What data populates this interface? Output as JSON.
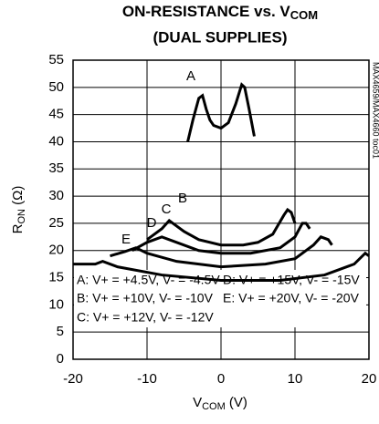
{
  "chart_data": {
    "type": "line",
    "title": {
      "main": "ON-RESISTANCE vs. V",
      "sub": "COM"
    },
    "subtitle": "(DUAL SUPPLIES)",
    "x_label": {
      "main": "V",
      "sub": "COM",
      "unit": " (V)"
    },
    "y_label": {
      "main": "R",
      "sub": "ON",
      "unit": " (Ω)"
    },
    "side_note": "MAX4659/MAX4660 toc01",
    "xlim": [
      -20,
      20
    ],
    "xticks": [
      -20,
      -10,
      0,
      10,
      20
    ],
    "ylim": [
      0,
      55
    ],
    "yticks": [
      0,
      5,
      10,
      15,
      20,
      25,
      30,
      35,
      40,
      45,
      50,
      55
    ],
    "grid": true,
    "series": [
      {
        "name": "A",
        "color": "#000000",
        "x": [
          -4.5,
          -3.8,
          -3,
          -2.5,
          -2,
          -1.5,
          -1,
          0,
          1,
          2,
          2.8,
          3.2,
          3.8,
          4.5
        ],
        "values": [
          40,
          44,
          48,
          48.5,
          46,
          44,
          43,
          42.5,
          43.5,
          47,
          50.5,
          50,
          46,
          41
        ]
      },
      {
        "name": "B",
        "color": "#000000",
        "x": [
          -10,
          -8,
          -7,
          -6.5,
          -5,
          -3,
          0,
          3,
          5,
          7,
          8.5,
          9,
          9.5,
          10
        ],
        "values": [
          22,
          24,
          25.5,
          25,
          23.5,
          22,
          21,
          21,
          21.5,
          23,
          26.5,
          27.5,
          27,
          25
        ]
      },
      {
        "name": "C",
        "color": "#000000",
        "x": [
          -12,
          -10,
          -8,
          -6,
          -3,
          0,
          4,
          8,
          10,
          11,
          11.5,
          12
        ],
        "values": [
          20,
          21.5,
          22.5,
          21.5,
          20,
          19.5,
          19.5,
          20.5,
          22.5,
          25,
          25,
          24
        ]
      },
      {
        "name": "D",
        "color": "#000000",
        "x": [
          -15,
          -13,
          -11.5,
          -10,
          -6,
          0,
          6,
          10,
          12.5,
          13.5,
          14.5,
          15
        ],
        "values": [
          19,
          19.8,
          20.5,
          19.5,
          18,
          17,
          17.5,
          18.5,
          21,
          22.5,
          22,
          21
        ]
      },
      {
        "name": "E",
        "color": "#000000",
        "x": [
          -20,
          -17,
          -16,
          -14,
          -8,
          0,
          8,
          14,
          18,
          19.5,
          20
        ],
        "values": [
          17.5,
          17.5,
          18,
          17,
          15.5,
          14.5,
          14.5,
          15.5,
          17.5,
          19.5,
          19
        ]
      }
    ],
    "legend_entries": [
      "A: V+ = +4.5V, V- = -4.5V",
      "B: V+ = +10V, V- = -10V",
      "C: V+ = +12V, V- = -12V",
      "D: V+ = +15V, V- = -15V",
      "E: V+ = +20V, V- = -20V"
    ]
  }
}
